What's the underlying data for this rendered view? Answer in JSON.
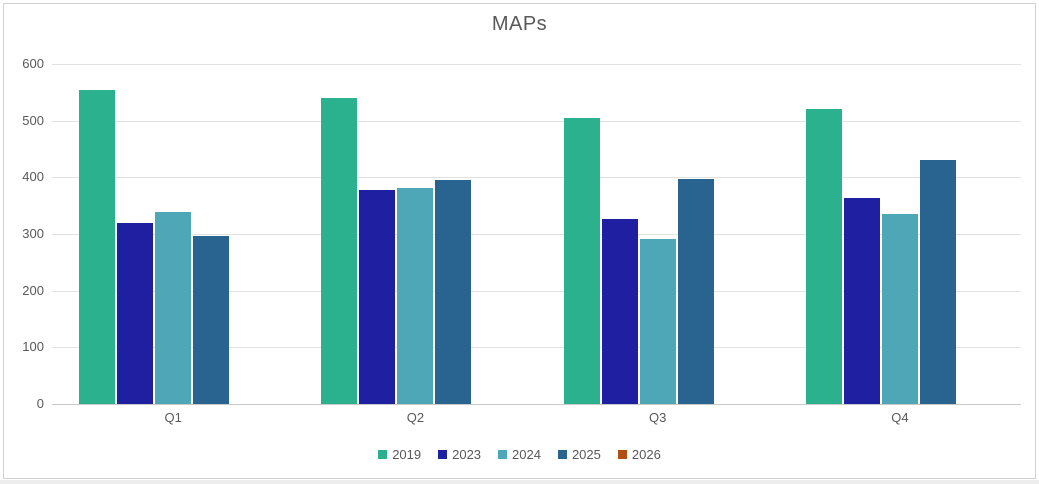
{
  "title": "MAPs",
  "chart_data": {
    "type": "bar",
    "title": "MAPs",
    "xlabel": "",
    "ylabel": "",
    "categories": [
      "Q1",
      "Q2",
      "Q3",
      "Q4"
    ],
    "series": [
      {
        "name": "2019",
        "color": "#2cb18f",
        "values": [
          554,
          540,
          504,
          521
        ]
      },
      {
        "name": "2023",
        "color": "#1f1fa1",
        "values": [
          320,
          378,
          327,
          363
        ]
      },
      {
        "name": "2024",
        "color": "#4da7b6",
        "values": [
          338,
          382,
          292,
          336
        ]
      },
      {
        "name": "2025",
        "color": "#28648f",
        "values": [
          296,
          396,
          397,
          430
        ]
      },
      {
        "name": "2026",
        "color": "#b05014",
        "values": [
          0,
          0,
          0,
          0
        ]
      }
    ],
    "ylim": [
      0,
      600
    ],
    "yticks": [
      0,
      100,
      200,
      300,
      400,
      500,
      600
    ],
    "grid": "horizontal",
    "legend_position": "bottom"
  },
  "colors": {
    "gridline": "#e2e2e2",
    "axis_line": "#c9c9c9",
    "text": "#595959",
    "frame_border": "#d2d2d2",
    "background": "#ffffff"
  }
}
